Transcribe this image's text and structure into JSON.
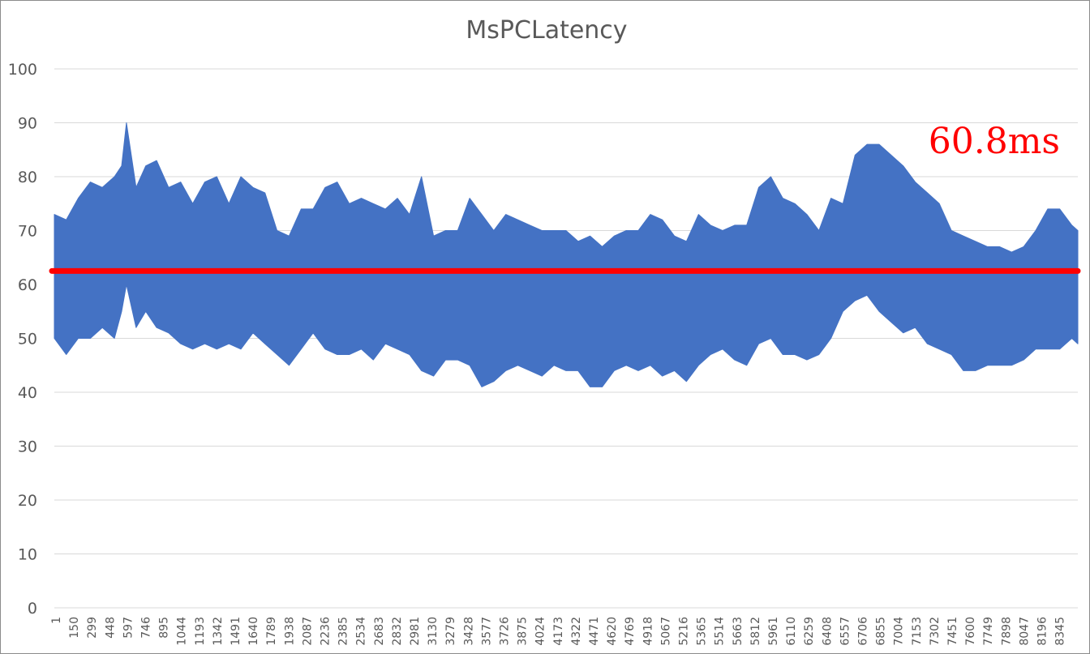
{
  "chart_data": {
    "type": "area",
    "title": "MsPCLatency",
    "xlabel": "",
    "ylabel": "",
    "ylim": [
      0,
      100
    ],
    "y_ticks": [
      0,
      10,
      20,
      30,
      40,
      50,
      60,
      70,
      80,
      90,
      100
    ],
    "x_range": [
      1,
      8500
    ],
    "x_tick_labels": [
      "1",
      "150",
      "299",
      "448",
      "597",
      "746",
      "895",
      "1044",
      "1193",
      "1342",
      "1491",
      "1640",
      "1789",
      "1938",
      "2087",
      "2236",
      "2385",
      "2534",
      "2683",
      "2832",
      "2981",
      "3130",
      "3279",
      "3428",
      "3577",
      "3726",
      "3875",
      "4024",
      "4173",
      "4322",
      "4471",
      "4620",
      "4769",
      "4918",
      "5067",
      "5216",
      "5365",
      "5514",
      "5663",
      "5812",
      "5961",
      "6110",
      "6259",
      "6408",
      "6557",
      "6706",
      "6855",
      "7004",
      "7153",
      "7302",
      "7451",
      "7600",
      "7749",
      "7898",
      "8047",
      "8196",
      "8345"
    ],
    "grid": "horizontal",
    "legend": "none",
    "series": [
      {
        "color": "#4472C4",
        "envelope": {
          "x": [
            1,
            100,
            200,
            300,
            400,
            500,
            560,
            600,
            680,
            760,
            850,
            950,
            1050,
            1150,
            1250,
            1350,
            1450,
            1550,
            1650,
            1750,
            1850,
            1950,
            2050,
            2150,
            2250,
            2350,
            2450,
            2550,
            2650,
            2750,
            2850,
            2950,
            3050,
            3150,
            3250,
            3350,
            3450,
            3550,
            3650,
            3750,
            3850,
            3950,
            4050,
            4150,
            4250,
            4350,
            4450,
            4550,
            4650,
            4750,
            4850,
            4950,
            5050,
            5150,
            5250,
            5350,
            5450,
            5550,
            5650,
            5750,
            5850,
            5950,
            6050,
            6150,
            6250,
            6350,
            6450,
            6550,
            6650,
            6750,
            6850,
            6950,
            7050,
            7150,
            7250,
            7350,
            7450,
            7550,
            7650,
            7750,
            7850,
            7950,
            8050,
            8150,
            8250,
            8350,
            8450,
            8500
          ],
          "upper": [
            73,
            72,
            76,
            79,
            78,
            80,
            82,
            90,
            78,
            82,
            83,
            78,
            79,
            75,
            79,
            80,
            75,
            80,
            78,
            77,
            70,
            69,
            74,
            74,
            78,
            79,
            75,
            76,
            75,
            74,
            76,
            73,
            80,
            69,
            70,
            70,
            76,
            73,
            70,
            73,
            72,
            71,
            70,
            70,
            70,
            68,
            69,
            67,
            69,
            70,
            70,
            73,
            72,
            69,
            68,
            73,
            71,
            70,
            71,
            71,
            78,
            80,
            76,
            75,
            73,
            70,
            76,
            75,
            84,
            86,
            86,
            84,
            82,
            79,
            77,
            75,
            70,
            69,
            68,
            67,
            67,
            66,
            67,
            70,
            74,
            74,
            71,
            70
          ],
          "lower": [
            50,
            47,
            50,
            50,
            52,
            50,
            55,
            60,
            52,
            55,
            52,
            51,
            49,
            48,
            49,
            48,
            49,
            48,
            51,
            49,
            47,
            45,
            48,
            51,
            48,
            47,
            47,
            48,
            46,
            49,
            48,
            47,
            44,
            43,
            46,
            46,
            45,
            41,
            42,
            44,
            45,
            44,
            43,
            45,
            44,
            44,
            41,
            41,
            44,
            45,
            44,
            45,
            43,
            44,
            42,
            45,
            47,
            48,
            46,
            45,
            49,
            50,
            47,
            47,
            46,
            47,
            50,
            55,
            57,
            58,
            55,
            53,
            51,
            52,
            49,
            48,
            47,
            44,
            44,
            45,
            45,
            45,
            46,
            48,
            48,
            48,
            50,
            49
          ]
        }
      }
    ],
    "reference_line": {
      "y": 62.5,
      "color": "#FF0000"
    },
    "annotation": {
      "text": "60.8ms",
      "color": "#FF0000"
    }
  }
}
